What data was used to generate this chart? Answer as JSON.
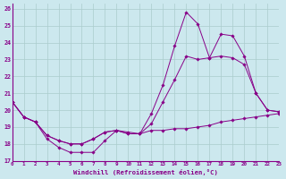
{
  "xlabel": "Windchill (Refroidissement éolien,°C)",
  "ylabel": "",
  "xlim": [
    0,
    23
  ],
  "ylim": [
    17,
    26.3
  ],
  "yticks": [
    17,
    18,
    19,
    20,
    21,
    22,
    23,
    24,
    25,
    26
  ],
  "xticks": [
    0,
    1,
    2,
    3,
    4,
    5,
    6,
    7,
    8,
    9,
    10,
    11,
    12,
    13,
    14,
    15,
    16,
    17,
    18,
    19,
    20,
    21,
    22,
    23
  ],
  "bg_color": "#cce8ee",
  "grid_color": "#aacccc",
  "line_color": "#880088",
  "lines": [
    {
      "x": [
        0,
        1,
        2,
        3,
        4,
        5,
        6,
        7,
        8,
        9,
        10,
        11,
        12,
        13,
        14,
        15,
        16,
        17,
        18,
        19,
        20,
        21,
        22,
        23
      ],
      "y": [
        20.5,
        19.6,
        19.3,
        18.3,
        17.8,
        17.5,
        17.5,
        17.5,
        18.2,
        18.8,
        18.7,
        18.6,
        18.8,
        18.8,
        18.9,
        18.9,
        19.0,
        19.1,
        19.3,
        19.4,
        19.5,
        19.6,
        19.7,
        19.8
      ]
    },
    {
      "x": [
        0,
        1,
        2,
        3,
        4,
        5,
        6,
        7,
        8,
        9,
        10,
        11,
        12,
        13,
        14,
        15,
        16,
        17,
        18,
        19,
        20,
        21,
        22,
        23
      ],
      "y": [
        20.5,
        19.6,
        19.3,
        18.5,
        18.2,
        18.0,
        18.0,
        18.3,
        18.7,
        18.8,
        18.6,
        18.6,
        19.2,
        20.5,
        21.8,
        23.2,
        23.0,
        23.1,
        23.2,
        23.1,
        22.7,
        21.0,
        20.0,
        19.9
      ]
    },
    {
      "x": [
        0,
        1,
        2,
        3,
        4,
        5,
        6,
        7,
        8,
        9,
        10,
        11,
        12,
        13,
        14,
        15,
        16,
        17,
        18,
        19,
        20,
        21,
        22,
        23
      ],
      "y": [
        20.5,
        19.6,
        19.3,
        18.5,
        18.2,
        18.0,
        18.0,
        18.3,
        18.7,
        18.8,
        18.6,
        18.6,
        19.8,
        21.5,
        23.8,
        25.8,
        25.1,
        23.1,
        24.5,
        24.4,
        23.2,
        21.0,
        20.0,
        19.9
      ]
    }
  ]
}
